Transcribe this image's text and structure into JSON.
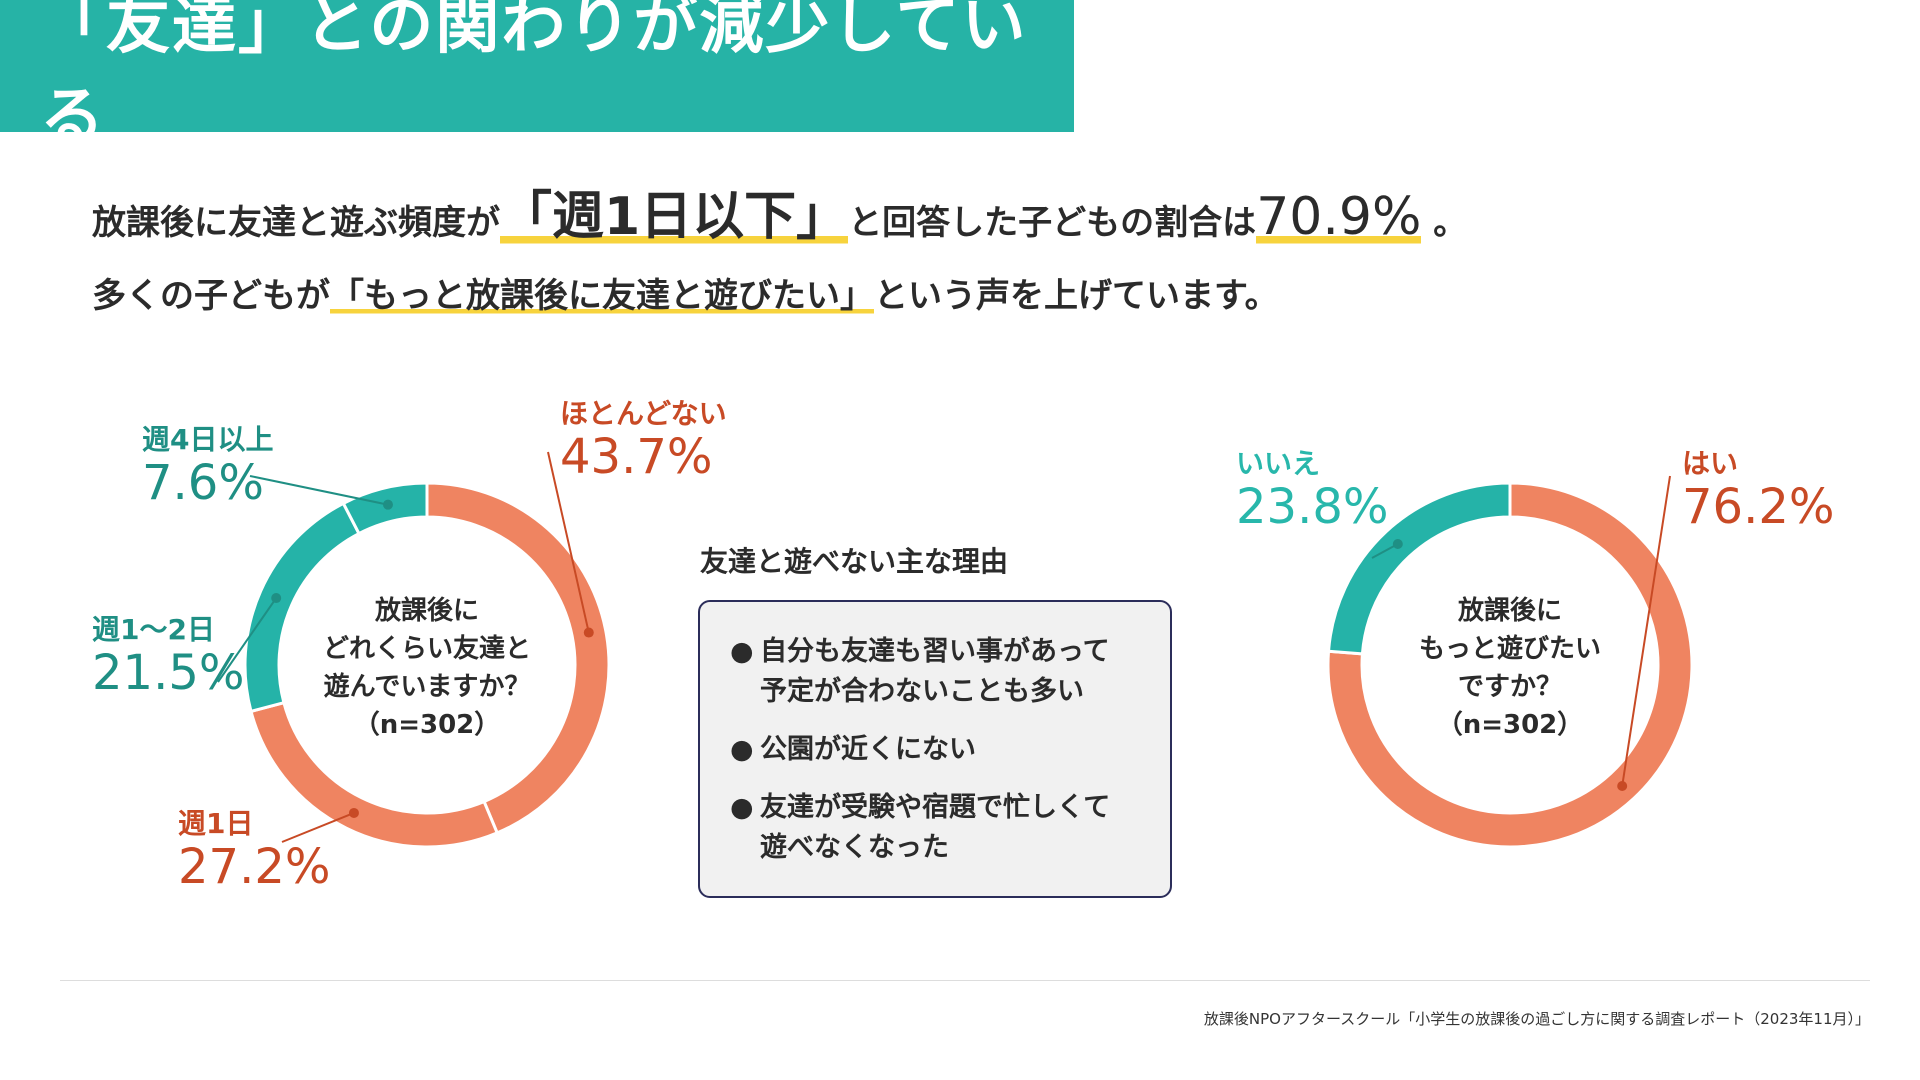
{
  "title": "「友達」との関わりが減少している",
  "lead": {
    "line1_a": "放課後に友達と遊ぶ頻度が",
    "line1_highlight": "「週1日以下」",
    "line1_b": "と回答した子どもの割合は",
    "line1_pct": "70.9%",
    "line1_end": " 。",
    "line2_a": "多くの子どもが",
    "line2_highlight": "「もっと放課後に友達と遊びたい」",
    "line2_b": "という声を上げています。"
  },
  "colors": {
    "band": "#26b3a6",
    "coral": "#ef8461",
    "teal": "#25b3a8",
    "red_text": "#c84a25",
    "teal_text": "#1f8f84",
    "highlight": "#f7d33d"
  },
  "chart_data": [
    {
      "type": "pie",
      "variant": "donut",
      "center_lines": [
        "放課後に",
        "どれくらい友達と",
        "遊んでいますか？",
        "（n=302）"
      ],
      "slices": [
        {
          "label": "ほとんどない",
          "value": 43.7,
          "display": "43.7%",
          "color": "#ef8461"
        },
        {
          "label": "週1日",
          "value": 27.2,
          "display": "27.2%",
          "color": "#ef8461"
        },
        {
          "label": "週1〜2日",
          "value": 21.5,
          "display": "21.5%",
          "color": "#25b3a8"
        },
        {
          "label": "週4日以上",
          "value": 7.6,
          "display": "7.6%",
          "color": "#25b3a8"
        }
      ]
    },
    {
      "type": "pie",
      "variant": "donut",
      "center_lines": [
        "放課後に",
        "もっと遊びたい",
        "ですか？",
        "（n=302）"
      ],
      "slices": [
        {
          "label": "はい",
          "value": 76.2,
          "display": "76.2%",
          "color": "#ef8461"
        },
        {
          "label": "いいえ",
          "value": 23.8,
          "display": "23.8%",
          "color": "#25b3a8"
        }
      ]
    }
  ],
  "reasons": {
    "title": "友達と遊べない主な理由",
    "items": [
      {
        "bullet": "●",
        "lines": [
          "自分も友達も習い事があって",
          "予定が合わないことも多い"
        ]
      },
      {
        "bullet": "●",
        "lines": [
          "公園が近くにない"
        ]
      },
      {
        "bullet": "●",
        "lines": [
          "友達が受験や宿題で忙しくて",
          "遊べなくなった"
        ]
      }
    ]
  },
  "source": "放課後NPOアフタースクール「小学生の放課後の過ごし方に関する調査レポート（2023年11月）」"
}
